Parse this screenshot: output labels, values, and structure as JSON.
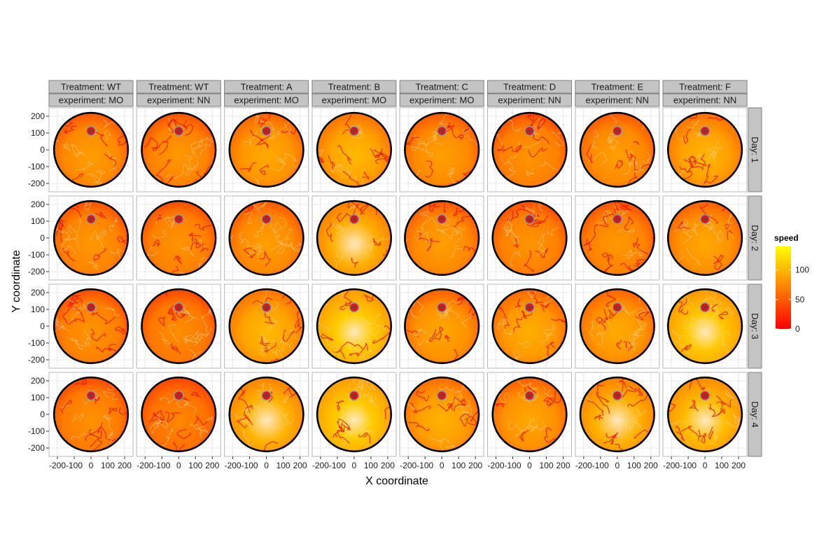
{
  "chart_data": {
    "type": "heatmap",
    "xlabel": "X coordinate",
    "ylabel": "Y coordinate",
    "xlim": [
      -250,
      250
    ],
    "ylim": [
      -250,
      250
    ],
    "x_ticks": [
      -200,
      -100,
      0,
      100,
      200
    ],
    "x_tick_labels": [
      "-200",
      "-100",
      "0",
      "100",
      "200"
    ],
    "y_ticks": [
      -200,
      -100,
      0,
      100,
      200
    ],
    "y_tick_labels": [
      "-200",
      "-100",
      "0",
      "100",
      "200"
    ],
    "arena_radius": 220,
    "target_center": [
      0,
      112
    ],
    "columns": [
      {
        "treatment": "Treatment: WT",
        "experiment": "experiment: MO",
        "mean_speed": [
          75,
          72,
          70,
          68
        ]
      },
      {
        "treatment": "Treatment: WT",
        "experiment": "experiment: NN",
        "mean_speed": [
          72,
          70,
          66,
          62
        ]
      },
      {
        "treatment": "Treatment: A",
        "experiment": "experiment: MO",
        "mean_speed": [
          82,
          76,
          90,
          98
        ]
      },
      {
        "treatment": "Treatment: B",
        "experiment": "experiment: MO",
        "mean_speed": [
          90,
          96,
          112,
          112
        ]
      },
      {
        "treatment": "Treatment: C",
        "experiment": "experiment: MO",
        "mean_speed": [
          76,
          76,
          80,
          86
        ]
      },
      {
        "treatment": "Treatment: D",
        "experiment": "experiment: NN",
        "mean_speed": [
          70,
          70,
          84,
          80
        ]
      },
      {
        "treatment": "Treatment: E",
        "experiment": "experiment: NN",
        "mean_speed": [
          76,
          72,
          82,
          98
        ]
      },
      {
        "treatment": "Treatment: F",
        "experiment": "experiment: NN",
        "mean_speed": [
          88,
          80,
          110,
          104
        ]
      }
    ],
    "rows": [
      "Day: 1",
      "Day: 2",
      "Day: 3",
      "Day: 4"
    ],
    "legend": {
      "title": "speed",
      "placement": "right",
      "range": [
        0,
        140
      ],
      "ticks": [
        0,
        50,
        100
      ],
      "tick_labels": [
        "0",
        "50",
        "100"
      ],
      "colors": [
        "#ff0000",
        "#ff8000",
        "#ffff00"
      ]
    },
    "grid": true
  }
}
